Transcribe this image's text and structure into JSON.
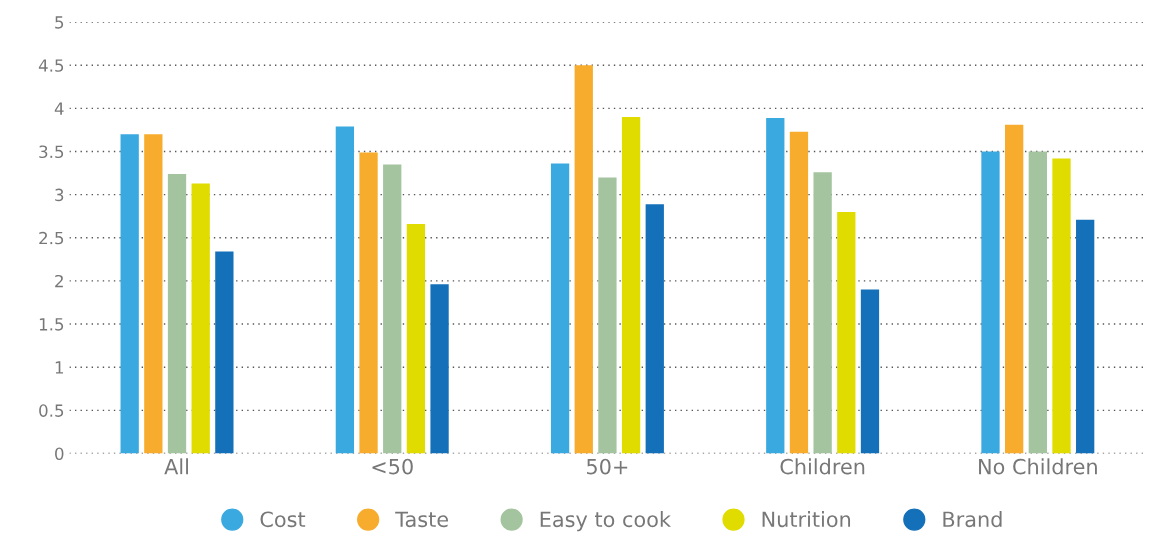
{
  "chart_data": {
    "type": "bar",
    "categories": [
      "All",
      "<50",
      "50+",
      "Children",
      "No Children"
    ],
    "series": [
      {
        "name": "Cost",
        "color": "#3aa9e0",
        "values": [
          3.7,
          3.79,
          3.36,
          3.89,
          3.5
        ]
      },
      {
        "name": "Taste",
        "color": "#f7ac2d",
        "values": [
          3.7,
          3.49,
          4.5,
          3.73,
          3.81
        ]
      },
      {
        "name": "Easy to cook",
        "color": "#a3c49e",
        "values": [
          3.24,
          3.35,
          3.2,
          3.26,
          3.5
        ]
      },
      {
        "name": "Nutrition",
        "color": "#e0dc00",
        "values": [
          3.13,
          2.66,
          3.9,
          2.8,
          3.42
        ]
      },
      {
        "name": "Brand",
        "color": "#1470b8",
        "values": [
          2.34,
          1.96,
          2.89,
          1.9,
          2.71
        ]
      }
    ],
    "ylim": [
      0,
      5
    ],
    "yticks": [
      0,
      0.5,
      1,
      1.5,
      2,
      2.5,
      3,
      3.5,
      4,
      4.5,
      5
    ],
    "grid": "y",
    "legend": "bottom"
  }
}
